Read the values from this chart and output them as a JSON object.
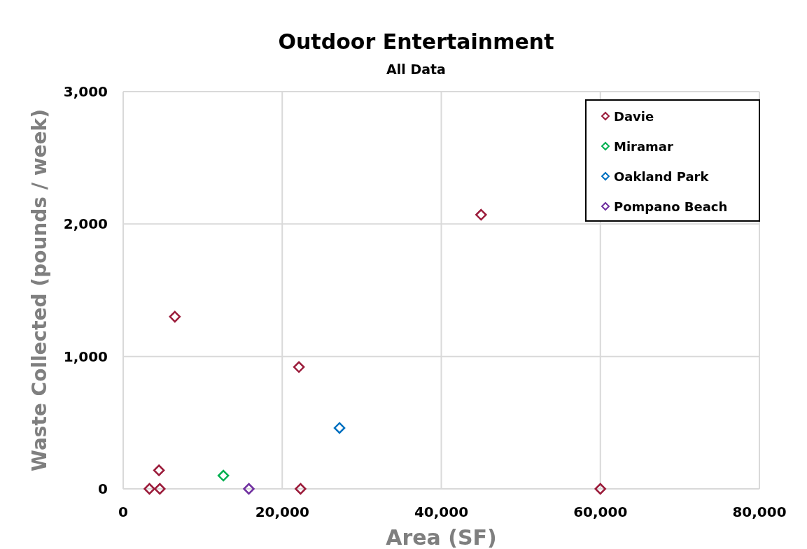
{
  "chart_data": {
    "type": "scatter",
    "title": "Outdoor Entertainment",
    "subtitle": "All Data",
    "xlabel": "Area (SF)",
    "ylabel": "Waste Collected (pounds / week)",
    "xlim": [
      0,
      80000
    ],
    "xticks": [
      {
        "value": 0,
        "label": "0"
      },
      {
        "value": 20000,
        "label": "20,000"
      },
      {
        "value": 40000,
        "label": "40,000"
      },
      {
        "value": 60000,
        "label": "60,000"
      },
      {
        "value": 80000,
        "label": "80,000"
      }
    ],
    "ylim": [
      0,
      3000
    ],
    "yticks": [
      {
        "value": 0,
        "label": "0"
      },
      {
        "value": 1000,
        "label": "1,000"
      },
      {
        "value": 2000,
        "label": "2,000"
      },
      {
        "value": 3000,
        "label": "3,000"
      }
    ],
    "grid": true,
    "legend": "top right",
    "marker": "diamond",
    "series": [
      {
        "name": "Davie",
        "color": "#9b1b3a",
        "x": [
          3300,
          4600,
          4500,
          6500,
          22100,
          22300,
          45000,
          60000
        ],
        "values": [
          0,
          0,
          140,
          1300,
          920,
          0,
          2070,
          0
        ]
      },
      {
        "name": "Miramar",
        "color": "#00b050",
        "x": [
          12600
        ],
        "values": [
          100
        ]
      },
      {
        "name": "Oakland Park",
        "color": "#0070c0",
        "x": [
          27200
        ],
        "values": [
          460
        ]
      },
      {
        "name": "Pompano Beach",
        "color": "#7030a0",
        "x": [
          15800
        ],
        "values": [
          0
        ]
      }
    ]
  }
}
